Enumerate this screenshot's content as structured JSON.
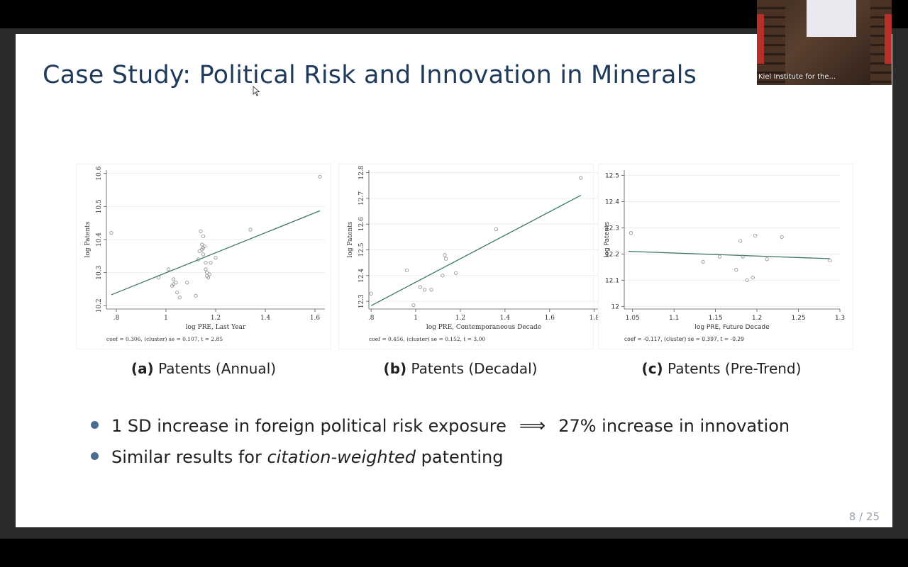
{
  "slide": {
    "title": "Case Study: Political Risk and Innovation in Minerals",
    "page": "8 / 25",
    "bullets": [
      {
        "before": "1 SD increase in foreign political risk exposure",
        "implies": "⟹",
        "after": "27% increase in innovation"
      },
      {
        "before": "Similar results for ",
        "italic": "citation-weighted",
        "after": " patenting"
      }
    ]
  },
  "captions": [
    {
      "label": "(a)",
      "text": "Patents (Annual)"
    },
    {
      "label": "(b)",
      "text": "Patents (Decadal)"
    },
    {
      "label": "(c)",
      "text": "Patents (Pre-Trend)"
    }
  ],
  "webcam": {
    "label": "Kiel Institute for the..."
  },
  "colors": {
    "title": "#1f3a5a",
    "fit_line": "#3f7a5e",
    "points": "#8a8a8a",
    "bullet": "#4a6e90"
  },
  "chart_data": [
    {
      "type": "scatter",
      "xlabel": "log PRE, Last Year",
      "ylabel": "log Patents",
      "note": "coef = 0.306, (cluster) se = 0.107, t = 2.85",
      "xlim": [
        0.76,
        1.64
      ],
      "ylim": [
        10.19,
        10.61
      ],
      "xticks": [
        0.8,
        1.0,
        1.2,
        1.4,
        1.6
      ],
      "xtick_labels": [
        ".8",
        "1",
        "1.2",
        "1.4",
        "1.6"
      ],
      "yticks": [
        10.2,
        10.3,
        10.4,
        10.5,
        10.6
      ],
      "ytick_labels": [
        "10.2",
        "10.3",
        "10.4",
        "10.5",
        "10.6"
      ],
      "ytick_rotated": true,
      "fit": {
        "x": [
          0.78,
          1.62
        ],
        "y": [
          10.233,
          10.487
        ]
      },
      "points": [
        [
          0.78,
          10.42
        ],
        [
          1.62,
          10.59
        ],
        [
          1.34,
          10.43
        ],
        [
          0.97,
          10.285
        ],
        [
          1.01,
          10.31
        ],
        [
          1.03,
          10.28
        ],
        [
          1.03,
          10.265
        ],
        [
          1.04,
          10.27
        ],
        [
          1.025,
          10.26
        ],
        [
          1.045,
          10.24
        ],
        [
          1.055,
          10.225
        ],
        [
          1.085,
          10.27
        ],
        [
          1.12,
          10.23
        ],
        [
          1.13,
          10.34
        ],
        [
          1.135,
          10.365
        ],
        [
          1.14,
          10.425
        ],
        [
          1.145,
          10.37
        ],
        [
          1.145,
          10.385
        ],
        [
          1.15,
          10.41
        ],
        [
          1.15,
          10.375
        ],
        [
          1.15,
          10.355
        ],
        [
          1.155,
          10.38
        ],
        [
          1.16,
          10.33
        ],
        [
          1.16,
          10.31
        ],
        [
          1.165,
          10.3
        ],
        [
          1.165,
          10.29
        ],
        [
          1.17,
          10.285
        ],
        [
          1.175,
          10.295
        ],
        [
          1.18,
          10.33
        ],
        [
          1.2,
          10.345
        ]
      ]
    },
    {
      "type": "scatter",
      "xlabel": "log PRE, Contemporaneous Decade",
      "ylabel": "log Patents",
      "note": "coef = 0.456, (cluster) se = 0.152, t = 3.00",
      "xlim": [
        0.79,
        1.82
      ],
      "ylim": [
        12.27,
        12.81
      ],
      "xticks": [
        0.8,
        1.0,
        1.2,
        1.4,
        1.6,
        1.8
      ],
      "xtick_labels": [
        ".8",
        "1",
        "1.2",
        "1.4",
        "1.6",
        "1.8"
      ],
      "yticks": [
        12.3,
        12.4,
        12.5,
        12.6,
        12.7,
        12.8
      ],
      "ytick_labels": [
        "12.3",
        "12.4",
        "12.5",
        "12.6",
        "12.7",
        "12.8"
      ],
      "ytick_rotated": true,
      "fit": {
        "x": [
          0.8,
          1.74
        ],
        "y": [
          12.283,
          12.712
        ]
      },
      "points": [
        [
          0.8,
          12.33
        ],
        [
          0.96,
          12.42
        ],
        [
          0.99,
          12.285
        ],
        [
          1.02,
          12.355
        ],
        [
          1.04,
          12.345
        ],
        [
          1.07,
          12.345
        ],
        [
          1.12,
          12.4
        ],
        [
          1.13,
          12.48
        ],
        [
          1.135,
          12.465
        ],
        [
          1.18,
          12.41
        ],
        [
          1.36,
          12.58
        ],
        [
          1.74,
          12.78
        ]
      ]
    },
    {
      "type": "scatter",
      "xlabel": "log PRE, Future Decade",
      "ylabel": "log Patents",
      "note": "coef = -0.117, (cluster) se = 0.397, t = -0.29",
      "xlim": [
        1.04,
        1.3
      ],
      "ylim": [
        11.99,
        12.52
      ],
      "xticks": [
        1.05,
        1.1,
        1.15,
        1.2,
        1.25,
        1.3
      ],
      "xtick_labels": [
        "1.05",
        "1.1",
        "1.15",
        "1.2",
        "1.25",
        "1.3"
      ],
      "yticks": [
        12.0,
        12.1,
        12.2,
        12.3,
        12.4,
        12.5
      ],
      "ytick_labels": [
        "12",
        "12.1",
        "12.2",
        "12.3",
        "12.4",
        "12.5"
      ],
      "ytick_rotated": false,
      "fit": {
        "x": [
          1.045,
          1.288
        ],
        "y": [
          12.21,
          12.182
        ]
      },
      "points": [
        [
          1.048,
          12.28
        ],
        [
          1.135,
          12.17
        ],
        [
          1.155,
          12.19
        ],
        [
          1.175,
          12.14
        ],
        [
          1.18,
          12.25
        ],
        [
          1.183,
          12.19
        ],
        [
          1.188,
          12.1
        ],
        [
          1.195,
          12.11
        ],
        [
          1.198,
          12.27
        ],
        [
          1.212,
          12.18
        ],
        [
          1.23,
          12.265
        ],
        [
          1.288,
          12.175
        ]
      ]
    }
  ]
}
